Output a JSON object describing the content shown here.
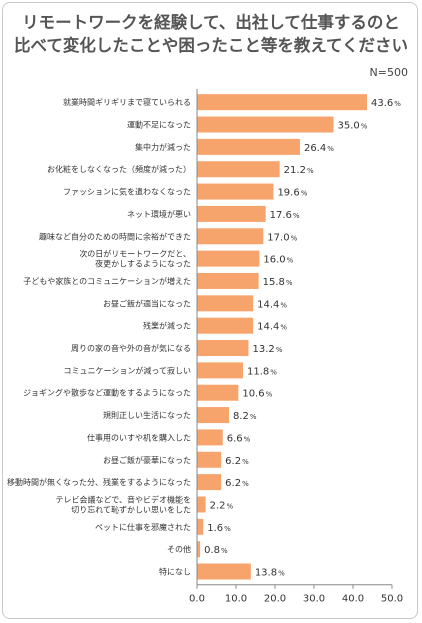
{
  "title_lines": [
    "リモートワークを経験して、出社して仕事するのと",
    "比べて変化したことや困ったこと等を教えてください"
  ],
  "sample_size": "N=500",
  "chart_data": {
    "type": "bar",
    "orientation": "horizontal",
    "categories": [
      [
        "就業時間ギリギリまで寝ていられる"
      ],
      [
        "運動不足になった"
      ],
      [
        "集中力が減った"
      ],
      [
        "お化粧をしなくなった（頻度が減った）"
      ],
      [
        "ファッションに気を遣わなくなった"
      ],
      [
        "ネット環境が悪い"
      ],
      [
        "趣味など自分のための時間に余裕ができた"
      ],
      [
        "次の日がリモートワークだと、",
        "夜更かしするようになった"
      ],
      [
        "子どもや家族とのコミュニケーションが増えた"
      ],
      [
        "お昼ご飯が適当になった"
      ],
      [
        "残業が減った"
      ],
      [
        "周りの家の音や外の音が気になる"
      ],
      [
        "コミュニケーションが減って寂しい"
      ],
      [
        "ジョギングや散歩など運動をするようになった"
      ],
      [
        "規則正しい生活になった"
      ],
      [
        "仕事用のいすや机を購入した"
      ],
      [
        "お昼ご飯が豪華になった"
      ],
      [
        "移動時間が無くなった分、残業をするようになった"
      ],
      [
        "テレビ会議などで、音やビデオ機能を",
        "切り忘れて恥ずかしい思いをした"
      ],
      [
        "ペットに仕事を邪魔された"
      ],
      [
        "その他"
      ],
      [
        "特になし"
      ]
    ],
    "values": [
      43.6,
      35.0,
      26.4,
      21.2,
      19.6,
      17.6,
      17.0,
      16.0,
      15.8,
      14.4,
      14.4,
      13.2,
      11.8,
      10.6,
      8.2,
      6.6,
      6.2,
      6.2,
      2.2,
      1.6,
      0.8,
      13.8
    ],
    "value_labels": [
      "43.6",
      "35.0",
      "26.4",
      "21.2",
      "19.6",
      "17.6",
      "17.0",
      "16.0",
      "15.8",
      "14.4",
      "14.4",
      "13.2",
      "11.8",
      "10.6",
      "8.2",
      "6.6",
      "6.2",
      "6.2",
      "2.2",
      "1.6",
      "0.8",
      "13.8"
    ],
    "percent_symbol": "%",
    "x_ticks": [
      "0.0",
      "10.0",
      "20.0",
      "30.0",
      "40.0",
      "50.0"
    ],
    "xlim": [
      0,
      50
    ],
    "bar_color": "#f7a46c",
    "axis_color": "#888888",
    "grid": false
  }
}
